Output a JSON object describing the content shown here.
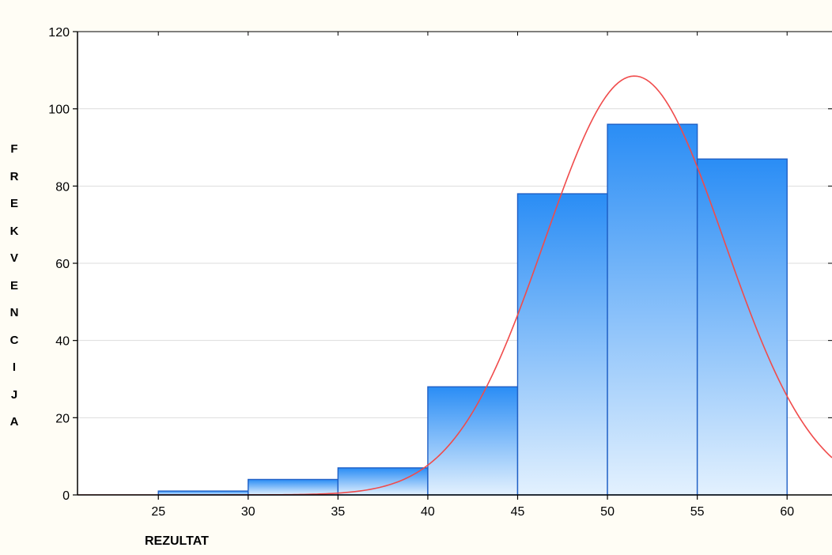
{
  "chart_data": {
    "type": "bar",
    "title": "",
    "xlabel": "REZULTAT",
    "ylabel": "FREKVENCIJA",
    "xlim": [
      20.5,
      62.5
    ],
    "ylim": [
      0,
      120
    ],
    "x_ticks": [
      25,
      30,
      35,
      40,
      45,
      50,
      55,
      60
    ],
    "y_ticks": [
      0,
      20,
      40,
      60,
      80,
      100,
      120
    ],
    "bins": [
      {
        "from": 25,
        "to": 30,
        "value": 1
      },
      {
        "from": 30,
        "to": 35,
        "value": 4
      },
      {
        "from": 35,
        "to": 40,
        "value": 7
      },
      {
        "from": 40,
        "to": 45,
        "value": 28
      },
      {
        "from": 45,
        "to": 50,
        "value": 78
      },
      {
        "from": 50,
        "to": 55,
        "value": 96
      },
      {
        "from": 55,
        "to": 60,
        "value": 87
      }
    ],
    "fit_curve": {
      "type": "normal",
      "peak_x": 51.5,
      "peak_y": 108.5,
      "sd": 5.0
    },
    "grid": true,
    "colors": {
      "bar_top": "#2a8df5",
      "bar_bottom": "#e3f1fe",
      "bar_edge": "#1f5fc5",
      "curve": "#f04b4b",
      "grid": "#dddddd",
      "axis": "#000000",
      "background": "#fffdf5"
    }
  }
}
